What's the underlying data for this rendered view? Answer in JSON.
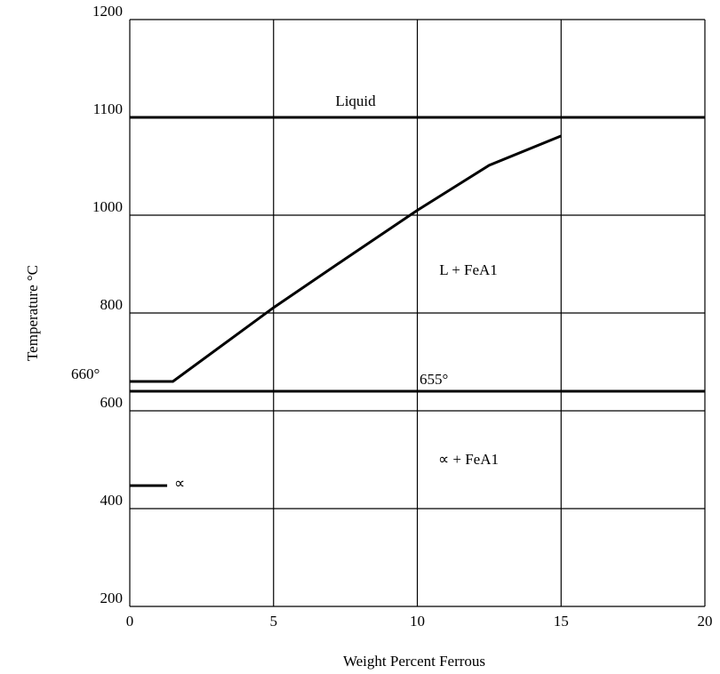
{
  "chart_data": {
    "type": "line",
    "x_label": "Weight Percent Ferrous",
    "y_label": "Temperature °C",
    "xlim": [
      0,
      20
    ],
    "xticks": [
      0,
      5,
      10,
      15,
      20
    ],
    "ylim": [
      200,
      1200
    ],
    "yticks": [
      200,
      400,
      600,
      800,
      1000,
      1100,
      1200
    ],
    "grid": true,
    "series": [
      {
        "color": "#000000",
        "x": [
          0,
          1.5,
          5,
          7.5,
          10,
          12.5,
          15
        ],
        "values": [
          660,
          660,
          811,
          911,
          1005,
          1051,
          1081
        ]
      },
      {
        "color": "#000000",
        "x": [
          0,
          20
        ],
        "values": [
          1100,
          1100
        ]
      },
      {
        "color": "#000000",
        "x": [
          0,
          20
        ],
        "values": [
          640,
          640
        ]
      },
      {
        "color": "#000000",
        "x": [
          0,
          1.3
        ],
        "values": [
          447,
          447
        ]
      }
    ],
    "annotations": [
      "Liquid",
      "L + FeA1",
      "655°",
      "∝ + FeA1",
      "∝",
      "660°"
    ]
  }
}
